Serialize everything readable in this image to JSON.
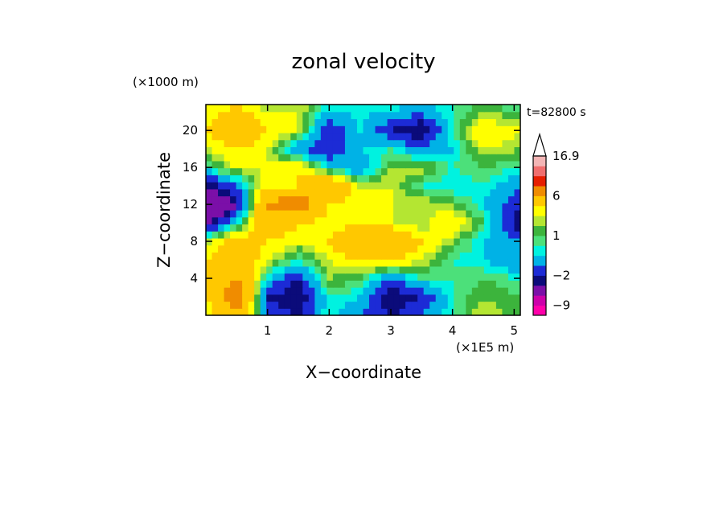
{
  "chart_data": {
    "type": "heatmap",
    "title": "zonal velocity",
    "xlabel": "X−coordinate",
    "ylabel": "Z−coordinate",
    "x_unit": "(×1E5 m)",
    "y_unit": "(×1000 m)",
    "time_label": "t=82800 s",
    "xlim": [
      0,
      5.1
    ],
    "ylim": [
      0,
      22.8
    ],
    "x_ticks": [
      "1",
      "2",
      "3",
      "4",
      "5"
    ],
    "x_tick_values": [
      1,
      2,
      3,
      4,
      5
    ],
    "y_ticks": [
      "4",
      "8",
      "12",
      "16",
      "20"
    ],
    "y_tick_values": [
      4,
      8,
      12,
      16,
      20
    ],
    "colorbar": {
      "labels": [
        "16.9",
        "6",
        "1",
        "−2",
        "−9"
      ],
      "label_values": [
        16.9,
        6,
        1,
        -2,
        -9
      ],
      "levels": [
        -12,
        -9,
        -6,
        -3,
        -2,
        -1,
        0,
        0.5,
        1,
        1.5,
        2,
        3,
        6,
        9,
        12,
        15,
        16.9
      ],
      "colors": [
        "#ff00aa",
        "#cc00aa",
        "#7b0fa8",
        "#0b0b7a",
        "#1c2bd6",
        "#00b2e6",
        "#00f2e0",
        "#4ce07a",
        "#3cb43c",
        "#b4e632",
        "#ffff00",
        "#ffc800",
        "#f08c00",
        "#e61e00",
        "#f06e6e",
        "#f3b5b5"
      ]
    },
    "field": {
      "note": "approximate zonal velocity field read from the filled contours",
      "grid_x": [
        0.0,
        0.5,
        1.0,
        1.5,
        2.0,
        2.5,
        3.0,
        3.5,
        4.0,
        4.5,
        5.1
      ],
      "grid_z": [
        0,
        2,
        4,
        6,
        8,
        10,
        12,
        14,
        16,
        18,
        20,
        22.8
      ],
      "values": [
        [
          2,
          5,
          -1,
          -2,
          0.5,
          -1,
          -2,
          -1,
          0.5,
          2,
          1
        ],
        [
          3,
          8,
          -2,
          -3,
          0.5,
          0,
          -3,
          -2,
          0.5,
          1.5,
          1
        ],
        [
          4,
          6,
          0,
          -2,
          1.5,
          1,
          -1,
          0.5,
          0.5,
          1,
          0.5
        ],
        [
          3,
          5,
          2,
          0.5,
          2,
          3,
          3,
          2,
          0.5,
          0,
          -1
        ],
        [
          1.5,
          4,
          3,
          2,
          3,
          6,
          6,
          3,
          1.5,
          0,
          -1
        ],
        [
          -3,
          0,
          5,
          3,
          2,
          3,
          2,
          1.5,
          3,
          1,
          -3
        ],
        [
          -6,
          -3,
          6,
          9,
          3,
          2,
          2,
          2,
          1.5,
          0,
          -2
        ],
        [
          -3,
          -1,
          3,
          3,
          6,
          2,
          2,
          0.5,
          0,
          0.5,
          -1
        ],
        [
          0.5,
          2,
          2,
          3,
          0,
          -1,
          1.5,
          2,
          0.5,
          1,
          0.5
        ],
        [
          2,
          3,
          2,
          -1,
          -2,
          0,
          0.5,
          -1,
          0,
          2,
          1.5
        ],
        [
          3,
          5,
          3,
          2,
          -2,
          0,
          -2,
          -3,
          0.5,
          3,
          2
        ],
        [
          2,
          3,
          1.5,
          2,
          0.5,
          0.5,
          0.5,
          0,
          0.5,
          1,
          0.5
        ]
      ]
    }
  }
}
